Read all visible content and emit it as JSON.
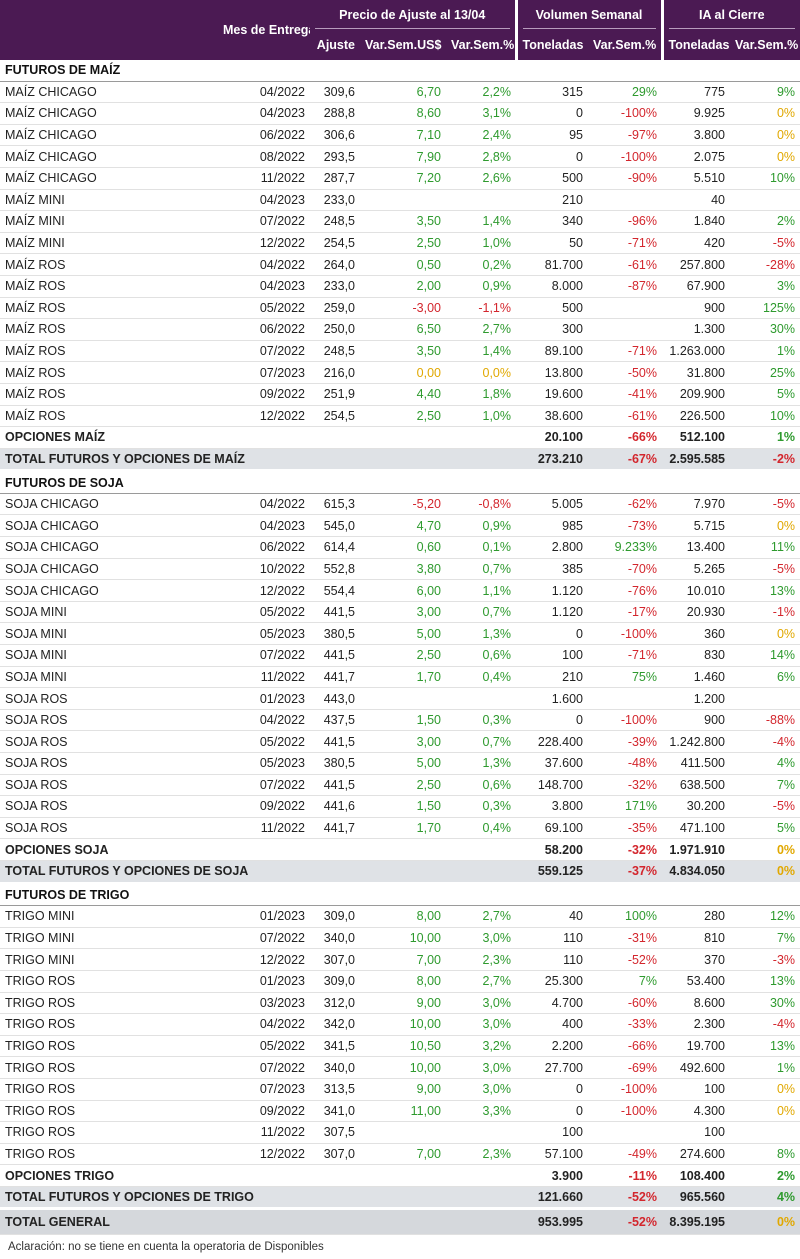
{
  "header": {
    "mes_entrega": "Mes de Entrega",
    "precio_group": "Precio de Ajuste al 13/04",
    "volumen_group": "Volumen Semanal",
    "ia_group": "IA al Cierre",
    "cols": [
      "Ajuste",
      "Var.Sem.US$",
      "Var.Sem.%",
      "Toneladas",
      "Var.Sem.%",
      "Toneladas",
      "Var.Sem.%"
    ]
  },
  "colors": {
    "header_bg": "#4b1a53",
    "positive": "#2e9a2e",
    "negative": "#d3262d",
    "zero": "#e1a800",
    "total_bg": "#dfe2e6"
  },
  "sections": [
    {
      "title": "FUTUROS DE MAÍZ",
      "rows": [
        [
          "MAÍZ CHICAGO",
          "04/2022",
          "309,6",
          "6,70",
          "2,2%",
          "315",
          "29%",
          "775",
          "9%"
        ],
        [
          "MAÍZ CHICAGO",
          "04/2023",
          "288,8",
          "8,60",
          "3,1%",
          "0",
          "-100%",
          "9.925",
          "0%"
        ],
        [
          "MAÍZ CHICAGO",
          "06/2022",
          "306,6",
          "7,10",
          "2,4%",
          "95",
          "-97%",
          "3.800",
          "0%"
        ],
        [
          "MAÍZ CHICAGO",
          "08/2022",
          "293,5",
          "7,90",
          "2,8%",
          "0",
          "-100%",
          "2.075",
          "0%"
        ],
        [
          "MAÍZ CHICAGO",
          "11/2022",
          "287,7",
          "7,20",
          "2,6%",
          "500",
          "-90%",
          "5.510",
          "10%"
        ],
        [
          "MAÍZ MINI",
          "04/2023",
          "233,0",
          "",
          "",
          "210",
          "",
          "40",
          ""
        ],
        [
          "MAÍZ MINI",
          "07/2022",
          "248,5",
          "3,50",
          "1,4%",
          "340",
          "-96%",
          "1.840",
          "2%"
        ],
        [
          "MAÍZ MINI",
          "12/2022",
          "254,5",
          "2,50",
          "1,0%",
          "50",
          "-71%",
          "420",
          "-5%"
        ],
        [
          "MAÍZ ROS",
          "04/2022",
          "264,0",
          "0,50",
          "0,2%",
          "81.700",
          "-61%",
          "257.800",
          "-28%"
        ],
        [
          "MAÍZ ROS",
          "04/2023",
          "233,0",
          "2,00",
          "0,9%",
          "8.000",
          "-87%",
          "67.900",
          "3%"
        ],
        [
          "MAÍZ ROS",
          "05/2022",
          "259,0",
          "-3,00",
          "-1,1%",
          "500",
          "",
          "900",
          "125%"
        ],
        [
          "MAÍZ ROS",
          "06/2022",
          "250,0",
          "6,50",
          "2,7%",
          "300",
          "",
          "1.300",
          "30%"
        ],
        [
          "MAÍZ ROS",
          "07/2022",
          "248,5",
          "3,50",
          "1,4%",
          "89.100",
          "-71%",
          "1.263.000",
          "1%"
        ],
        [
          "MAÍZ ROS",
          "07/2023",
          "216,0",
          "0,00",
          "0,0%",
          "13.800",
          "-50%",
          "31.800",
          "25%"
        ],
        [
          "MAÍZ ROS",
          "09/2022",
          "251,9",
          "4,40",
          "1,8%",
          "19.600",
          "-41%",
          "209.900",
          "5%"
        ],
        [
          "MAÍZ ROS",
          "12/2022",
          "254,5",
          "2,50",
          "1,0%",
          "38.600",
          "-61%",
          "226.500",
          "10%"
        ]
      ],
      "opciones": [
        "OPCIONES MAÍZ",
        "20.100",
        "-66%",
        "512.100",
        "1%"
      ],
      "total": [
        "TOTAL FUTUROS Y OPCIONES DE MAÍZ",
        "273.210",
        "-67%",
        "2.595.585",
        "-2%"
      ]
    },
    {
      "title": "FUTUROS DE SOJA",
      "rows": [
        [
          "SOJA CHICAGO",
          "04/2022",
          "615,3",
          "-5,20",
          "-0,8%",
          "5.005",
          "-62%",
          "7.970",
          "-5%"
        ],
        [
          "SOJA CHICAGO",
          "04/2023",
          "545,0",
          "4,70",
          "0,9%",
          "985",
          "-73%",
          "5.715",
          "0%"
        ],
        [
          "SOJA CHICAGO",
          "06/2022",
          "614,4",
          "0,60",
          "0,1%",
          "2.800",
          "9.233%",
          "13.400",
          "11%"
        ],
        [
          "SOJA CHICAGO",
          "10/2022",
          "552,8",
          "3,80",
          "0,7%",
          "385",
          "-70%",
          "5.265",
          "-5%"
        ],
        [
          "SOJA CHICAGO",
          "12/2022",
          "554,4",
          "6,00",
          "1,1%",
          "1.120",
          "-76%",
          "10.010",
          "13%"
        ],
        [
          "SOJA MINI",
          "05/2022",
          "441,5",
          "3,00",
          "0,7%",
          "1.120",
          "-17%",
          "20.930",
          "-1%"
        ],
        [
          "SOJA MINI",
          "05/2023",
          "380,5",
          "5,00",
          "1,3%",
          "0",
          "-100%",
          "360",
          "0%"
        ],
        [
          "SOJA MINI",
          "07/2022",
          "441,5",
          "2,50",
          "0,6%",
          "100",
          "-71%",
          "830",
          "14%"
        ],
        [
          "SOJA MINI",
          "11/2022",
          "441,7",
          "1,70",
          "0,4%",
          "210",
          "75%",
          "1.460",
          "6%"
        ],
        [
          "SOJA ROS",
          "01/2023",
          "443,0",
          "",
          "",
          "1.600",
          "",
          "1.200",
          ""
        ],
        [
          "SOJA ROS",
          "04/2022",
          "437,5",
          "1,50",
          "0,3%",
          "0",
          "-100%",
          "900",
          "-88%"
        ],
        [
          "SOJA ROS",
          "05/2022",
          "441,5",
          "3,00",
          "0,7%",
          "228.400",
          "-39%",
          "1.242.800",
          "-4%"
        ],
        [
          "SOJA ROS",
          "05/2023",
          "380,5",
          "5,00",
          "1,3%",
          "37.600",
          "-48%",
          "411.500",
          "4%"
        ],
        [
          "SOJA ROS",
          "07/2022",
          "441,5",
          "2,50",
          "0,6%",
          "148.700",
          "-32%",
          "638.500",
          "7%"
        ],
        [
          "SOJA ROS",
          "09/2022",
          "441,6",
          "1,50",
          "0,3%",
          "3.800",
          "171%",
          "30.200",
          "-5%"
        ],
        [
          "SOJA ROS",
          "11/2022",
          "441,7",
          "1,70",
          "0,4%",
          "69.100",
          "-35%",
          "471.100",
          "5%"
        ]
      ],
      "opciones": [
        "OPCIONES SOJA",
        "58.200",
        "-32%",
        "1.971.910",
        "0%"
      ],
      "total": [
        "TOTAL FUTUROS Y OPCIONES DE SOJA",
        "559.125",
        "-37%",
        "4.834.050",
        "0%"
      ]
    },
    {
      "title": "FUTUROS DE TRIGO",
      "rows": [
        [
          "TRIGO MINI",
          "01/2023",
          "309,0",
          "8,00",
          "2,7%",
          "40",
          "100%",
          "280",
          "12%"
        ],
        [
          "TRIGO MINI",
          "07/2022",
          "340,0",
          "10,00",
          "3,0%",
          "110",
          "-31%",
          "810",
          "7%"
        ],
        [
          "TRIGO MINI",
          "12/2022",
          "307,0",
          "7,00",
          "2,3%",
          "110",
          "-52%",
          "370",
          "-3%"
        ],
        [
          "TRIGO ROS",
          "01/2023",
          "309,0",
          "8,00",
          "2,7%",
          "25.300",
          "7%",
          "53.400",
          "13%"
        ],
        [
          "TRIGO ROS",
          "03/2023",
          "312,0",
          "9,00",
          "3,0%",
          "4.700",
          "-60%",
          "8.600",
          "30%"
        ],
        [
          "TRIGO ROS",
          "04/2022",
          "342,0",
          "10,00",
          "3,0%",
          "400",
          "-33%",
          "2.300",
          "-4%"
        ],
        [
          "TRIGO ROS",
          "05/2022",
          "341,5",
          "10,50",
          "3,2%",
          "2.200",
          "-66%",
          "19.700",
          "13%"
        ],
        [
          "TRIGO ROS",
          "07/2022",
          "340,0",
          "10,00",
          "3,0%",
          "27.700",
          "-69%",
          "492.600",
          "1%"
        ],
        [
          "TRIGO ROS",
          "07/2023",
          "313,5",
          "9,00",
          "3,0%",
          "0",
          "-100%",
          "100",
          "0%"
        ],
        [
          "TRIGO ROS",
          "09/2022",
          "341,0",
          "11,00",
          "3,3%",
          "0",
          "-100%",
          "4.300",
          "0%"
        ],
        [
          "TRIGO ROS",
          "11/2022",
          "307,5",
          "",
          "",
          "100",
          "",
          "100",
          ""
        ],
        [
          "TRIGO ROS",
          "12/2022",
          "307,0",
          "7,00",
          "2,3%",
          "57.100",
          "-49%",
          "274.600",
          "8%"
        ]
      ],
      "opciones": [
        "OPCIONES TRIGO",
        "3.900",
        "-11%",
        "108.400",
        "2%"
      ],
      "total": [
        "TOTAL FUTUROS Y OPCIONES DE TRIGO",
        "121.660",
        "-52%",
        "965.560",
        "4%"
      ]
    }
  ],
  "grand_total": [
    "TOTAL GENERAL",
    "953.995",
    "-52%",
    "8.395.195",
    "0%"
  ],
  "note": "Aclaración: no se tiene en cuenta la operatoria de Disponibles"
}
